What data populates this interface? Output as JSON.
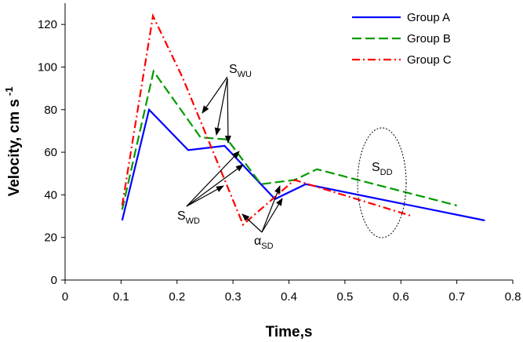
{
  "chart_data": {
    "type": "line",
    "xlabel": "Time,s",
    "ylabel": "Velocity, cm s",
    "ylabel_sup": "-1",
    "xlim": [
      0,
      0.8
    ],
    "ylim": [
      0,
      130
    ],
    "xticks": [
      "0",
      "0.1",
      "0.2",
      "0.3",
      "0.4",
      "0.5",
      "0.6",
      "0.7",
      "0.8"
    ],
    "yticks": [
      "0",
      "20",
      "40",
      "60",
      "80",
      "100",
      "120"
    ],
    "grid": false,
    "legend_position": "top-right",
    "series": [
      {
        "name": "Group A",
        "color": "#0000ff",
        "style": "solid",
        "points": [
          [
            0.102,
            28
          ],
          [
            0.15,
            80
          ],
          [
            0.22,
            61
          ],
          [
            0.285,
            63
          ],
          [
            0.375,
            38
          ],
          [
            0.43,
            45
          ],
          [
            0.75,
            28
          ]
        ]
      },
      {
        "name": "Group B",
        "color": "#009900",
        "style": "dashed",
        "points": [
          [
            0.102,
            33
          ],
          [
            0.158,
            98
          ],
          [
            0.242,
            67
          ],
          [
            0.29,
            66
          ],
          [
            0.35,
            45
          ],
          [
            0.41,
            47
          ],
          [
            0.45,
            52
          ],
          [
            0.7,
            35
          ]
        ]
      },
      {
        "name": "Group C",
        "color": "#ff0000",
        "style": "dashdot",
        "points": [
          [
            0.102,
            35
          ],
          [
            0.157,
            124
          ],
          [
            0.21,
            95
          ],
          [
            0.318,
            26
          ],
          [
            0.41,
            47
          ],
          [
            0.62,
            30
          ]
        ]
      }
    ],
    "annotations": [
      {
        "main": "S",
        "sub": "WU"
      },
      {
        "main": "S",
        "sub": "WD"
      },
      {
        "main": "α",
        "sub": "SD"
      },
      {
        "main": "S",
        "sub": "DD"
      }
    ]
  }
}
